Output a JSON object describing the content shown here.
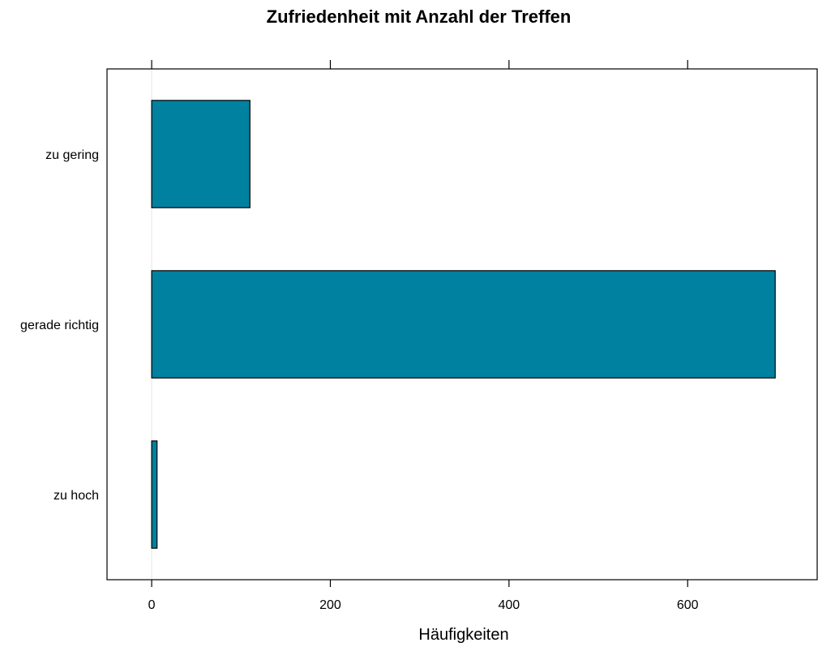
{
  "chart_data": {
    "type": "bar",
    "orientation": "horizontal",
    "title": "Zufriedenheit mit Anzahl der Treffen",
    "xlabel": "Häufigkeiten",
    "ylabel": "",
    "categories": [
      "zu gering",
      "gerade richtig",
      "zu hoch"
    ],
    "values": [
      110,
      698,
      6
    ],
    "xlim": [
      -50,
      745
    ],
    "xticks": [
      0,
      200,
      400,
      600
    ],
    "grid": false,
    "bar_color": "#00819f",
    "bar_edge_color": "#000000",
    "reference_line_color": "#e6e6e6"
  }
}
